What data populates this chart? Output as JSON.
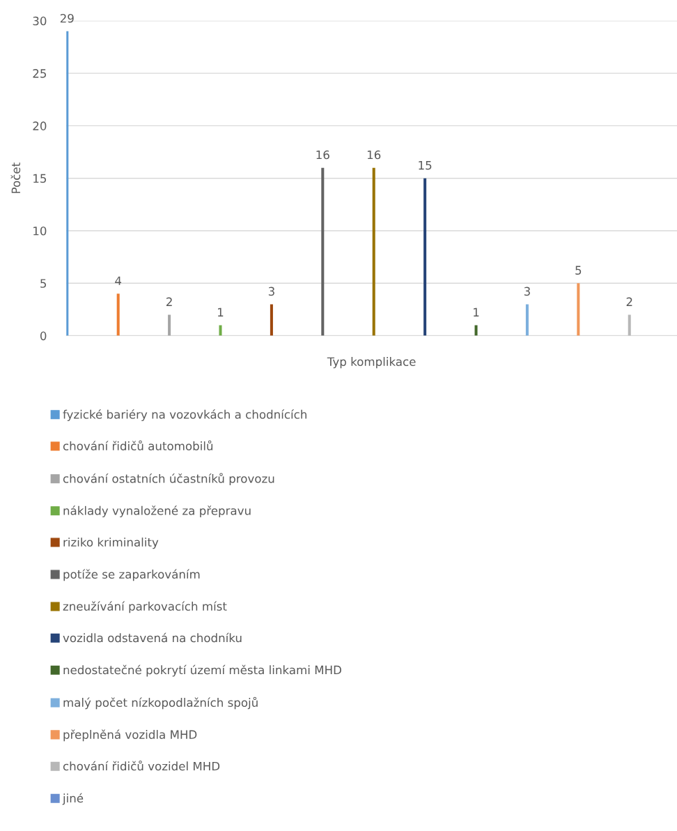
{
  "chart_data": {
    "type": "bar",
    "xlabel": "Typ komplikace",
    "ylabel": "Počet",
    "categories": [
      null
    ],
    "series": [
      {
        "name": "fyzické bariéry na vozovkách a chodnících",
        "color": "#5b9bd5",
        "values": [
          29
        ]
      },
      {
        "name": "chování řidičů automobilů",
        "color": "#ed7d31",
        "values": [
          4
        ]
      },
      {
        "name": "chování ostatních účastníků provozu",
        "color": "#a5a5a5",
        "values": [
          2
        ]
      },
      {
        "name": "náklady vynaložené za přepravu",
        "color": "#70ad47",
        "values": [
          1
        ]
      },
      {
        "name": "riziko kriminality",
        "color": "#9e480e",
        "values": [
          3
        ]
      },
      {
        "name": "potíže se zaparkováním",
        "color": "#636363",
        "values": [
          16
        ]
      },
      {
        "name": "zneužívání parkovacích míst",
        "color": "#997300",
        "values": [
          16
        ]
      },
      {
        "name": "vozidla odstavená na chodníku",
        "color": "#264478",
        "values": [
          15
        ]
      },
      {
        "name": "nedostatečné pokrytí území města linkami MHD",
        "color": "#43682b",
        "values": [
          1
        ]
      },
      {
        "name": "malý počet nízkopodlažních spojů",
        "color": "#7cafdd",
        "values": [
          3
        ]
      },
      {
        "name": "přeplněná vozidla MHD",
        "color": "#f1975a",
        "values": [
          5
        ]
      },
      {
        "name": "chování řidičů vozidel MHD",
        "color": "#b7b7b7",
        "values": [
          2
        ]
      },
      {
        "name": "jiné",
        "color": "#698ed0",
        "values": [
          null
        ]
      }
    ],
    "ylim": [
      0,
      30
    ],
    "yticks": [
      0,
      5,
      10,
      15,
      20,
      25,
      30
    ],
    "grid": "y",
    "legend": "bottom",
    "data_labels": true
  }
}
